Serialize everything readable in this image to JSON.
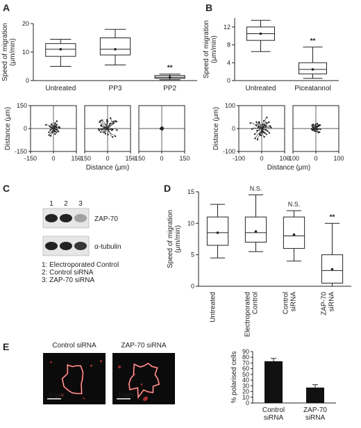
{
  "panels": {
    "A": "A",
    "B": "B",
    "C": "C",
    "D": "D",
    "E": "E"
  },
  "chart_data": [
    {
      "id": "A-box",
      "type": "box",
      "categories": [
        "Untreated",
        "PP3",
        "PP2"
      ],
      "ylabel": "Speed of migration (μm/min)",
      "ylabel_lines": [
        "Speed of migration",
        "(μm/min)"
      ],
      "ylim": [
        0,
        20
      ],
      "yticks": [
        0,
        10,
        20
      ],
      "boxes": [
        {
          "min": 5,
          "q1": 8.5,
          "median": 11,
          "q3": 13,
          "max": 14.5,
          "mean": 11
        },
        {
          "min": 5.5,
          "q1": 9,
          "median": 11,
          "q3": 15,
          "max": 18,
          "mean": 11
        },
        {
          "min": 0.3,
          "q1": 0.8,
          "median": 1.2,
          "q3": 1.8,
          "max": 2.3,
          "mean": 1.2
        }
      ],
      "annotations": [
        {
          "category": "PP2",
          "text": "**"
        }
      ]
    },
    {
      "id": "B-box",
      "type": "box",
      "categories": [
        "Untreated",
        "Piceatannol"
      ],
      "ylabel": "Speed of migration (μm/min)",
      "ylabel_lines": [
        "Speed of migration",
        "(μm/min)"
      ],
      "ylim": [
        0,
        14
      ],
      "yticks": [
        0,
        4,
        8,
        12
      ],
      "boxes": [
        {
          "min": 6.5,
          "q1": 9,
          "median": 10.5,
          "q3": 12,
          "max": 13.5,
          "mean": 10.5
        },
        {
          "min": 0.5,
          "q1": 1.5,
          "median": 2.5,
          "q3": 4,
          "max": 7.5,
          "mean": 2.5
        }
      ],
      "annotations": [
        {
          "category": "Piceatannol",
          "text": "**"
        }
      ]
    },
    {
      "id": "A-tracks",
      "type": "scatter",
      "xlabel": "Distance (μm)",
      "ylabel": "Distance (μm)",
      "xlim": [
        -150,
        150
      ],
      "ylim": [
        -150,
        150
      ],
      "xticks": [
        -150,
        0,
        150
      ],
      "yticks": [
        -150,
        0,
        150
      ],
      "plots": [
        {
          "spread": 55,
          "count": 26
        },
        {
          "spread": 70,
          "count": 26
        },
        {
          "spread": 10,
          "count": 26
        }
      ]
    },
    {
      "id": "B-tracks",
      "type": "scatter",
      "xlabel": "Distance (μm)",
      "ylabel": "Distance (μm)",
      "xlim": [
        -100,
        100
      ],
      "ylim": [
        -100,
        100
      ],
      "xticks": [
        -100,
        0,
        100
      ],
      "yticks": [
        -100,
        0,
        100
      ],
      "plots": [
        {
          "spread": 55,
          "count": 30
        },
        {
          "spread": 22,
          "count": 26
        }
      ]
    },
    {
      "id": "D-box",
      "type": "box",
      "categories": [
        "Untreated",
        "Electroporated Control",
        "Control siRNA",
        "ZAP-70 siRNA"
      ],
      "category_lines": [
        [
          "Untreated"
        ],
        [
          "Electroporated",
          "Control"
        ],
        [
          "Control",
          "siRNA"
        ],
        [
          "ZAP-70",
          "siRNA"
        ]
      ],
      "ylabel": "Speed of migration (μm/min)",
      "ylabel_lines": [
        "Speed of migration",
        "(μm/min)"
      ],
      "ylim": [
        0,
        15
      ],
      "yticks": [
        0,
        5,
        10,
        15
      ],
      "boxes": [
        {
          "min": 4.5,
          "q1": 6.5,
          "median": 8.5,
          "q3": 11,
          "max": 13,
          "mean": 8.5
        },
        {
          "min": 5.5,
          "q1": 7,
          "median": 8.5,
          "q3": 11,
          "max": 14.5,
          "mean": 8.7
        },
        {
          "min": 4,
          "q1": 6,
          "median": 8,
          "q3": 11,
          "max": 12,
          "mean": 8.2
        },
        {
          "min": 0,
          "q1": 0.5,
          "median": 2.5,
          "q3": 5,
          "max": 10,
          "mean": 2.7
        }
      ],
      "annotations": [
        {
          "category": "Electroporated Control",
          "text": "N.S."
        },
        {
          "category": "Control siRNA",
          "text": "N.S."
        },
        {
          "category": "ZAP-70 siRNA",
          "text": "**"
        }
      ]
    },
    {
      "id": "E-bar",
      "type": "bar",
      "categories": [
        "Control siRNA",
        "ZAP-70 siRNA"
      ],
      "category_lines": [
        [
          "Control",
          "siRNA"
        ],
        [
          "ZAP-70",
          "siRNA"
        ]
      ],
      "values": [
        73,
        27
      ],
      "errors": [
        5,
        5
      ],
      "ylabel": "% polarised cells",
      "ylim": [
        0,
        90
      ],
      "yticks": [
        0,
        10,
        20,
        30,
        40,
        50,
        60,
        70,
        80,
        90
      ]
    }
  ],
  "western": {
    "lanes": [
      "1",
      "2",
      "3"
    ],
    "band_labels": [
      "ZAP-70",
      "α-tubulin"
    ],
    "band_intensity": {
      "ZAP-70": [
        1.0,
        1.0,
        0.35
      ],
      "α-tubulin": [
        1.0,
        1.0,
        0.9
      ]
    },
    "legend": [
      "1:  Electroporated Control",
      "2: Control siRNA",
      "3: ZAP-70 siRNA"
    ]
  },
  "micrographs": [
    {
      "title": "Control siRNA",
      "scale": "10μm"
    },
    {
      "title": "ZAP-70 siRNA",
      "scale": "10μm"
    }
  ],
  "colors": {
    "ink": "#222222",
    "bar": "#111111",
    "cell": "#d23a3a",
    "micro_bg": "#0b0b0b"
  }
}
